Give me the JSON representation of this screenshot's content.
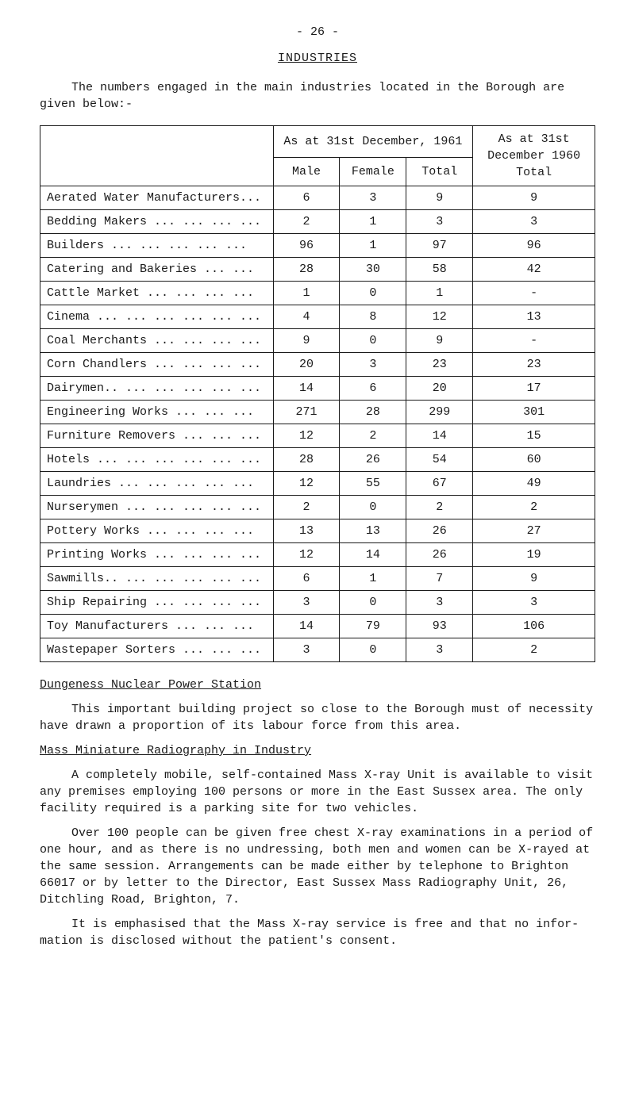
{
  "page_number": "- 26 -",
  "title": "INDUSTRIES",
  "intro": "The numbers engaged in the main industries located in the Borough are given below:-",
  "table": {
    "header": {
      "group1": "As at 31st December, 1961",
      "male": "Male",
      "female": "Female",
      "total": "Total",
      "prev": "As at 31st December 1960 Total"
    },
    "rows": [
      {
        "label": "Aerated Water Manufacturers...",
        "male": "6",
        "female": "3",
        "total": "9",
        "prev": "9"
      },
      {
        "label": "Bedding Makers ... ... ... ...",
        "male": "2",
        "female": "1",
        "total": "3",
        "prev": "3"
      },
      {
        "label": "Builders   ... ... ... ... ...",
        "male": "96",
        "female": "1",
        "total": "97",
        "prev": "96"
      },
      {
        "label": "Catering and Bakeries  ... ...",
        "male": "28",
        "female": "30",
        "total": "58",
        "prev": "42"
      },
      {
        "label": "Cattle Market  ... ... ... ...",
        "male": "1",
        "female": "0",
        "total": "1",
        "prev": "-"
      },
      {
        "label": "Cinema ... ... ... ... ... ...",
        "male": "4",
        "female": "8",
        "total": "12",
        "prev": "13"
      },
      {
        "label": "Coal Merchants ... ... ... ...",
        "male": "9",
        "female": "0",
        "total": "9",
        "prev": "-"
      },
      {
        "label": "Corn Chandlers ... ... ... ...",
        "male": "20",
        "female": "3",
        "total": "23",
        "prev": "23"
      },
      {
        "label": "Dairymen.. ... ... ... ... ...",
        "male": "14",
        "female": "6",
        "total": "20",
        "prev": "17"
      },
      {
        "label": "Engineering Works  ... ... ...",
        "male": "271",
        "female": "28",
        "total": "299",
        "prev": "301"
      },
      {
        "label": "Furniture Removers ... ... ...",
        "male": "12",
        "female": "2",
        "total": "14",
        "prev": "15"
      },
      {
        "label": "Hotels ... ... ... ... ... ...",
        "male": "28",
        "female": "26",
        "total": "54",
        "prev": "60"
      },
      {
        "label": "Laundries  ... ... ... ... ...",
        "male": "12",
        "female": "55",
        "total": "67",
        "prev": "49"
      },
      {
        "label": "Nurserymen ... ... ... ... ...",
        "male": "2",
        "female": "0",
        "total": "2",
        "prev": "2"
      },
      {
        "label": "Pottery Works  ... ... ... ...",
        "male": "13",
        "female": "13",
        "total": "26",
        "prev": "27"
      },
      {
        "label": "Printing Works ... ... ... ...",
        "male": "12",
        "female": "14",
        "total": "26",
        "prev": "19"
      },
      {
        "label": "Sawmills.. ... ... ... ... ...",
        "male": "6",
        "female": "1",
        "total": "7",
        "prev": "9"
      },
      {
        "label": "Ship Repairing ... ... ... ...",
        "male": "3",
        "female": "0",
        "total": "3",
        "prev": "3"
      },
      {
        "label": "Toy Manufacturers  ... ... ...",
        "male": "14",
        "female": "79",
        "total": "93",
        "prev": "106"
      },
      {
        "label": "Wastepaper Sorters ... ... ...",
        "male": "3",
        "female": "0",
        "total": "3",
        "prev": "2"
      }
    ]
  },
  "section1_heading": "Dungeness Nuclear Power Station",
  "section1_p1": "This important building project so close to the Borough must of necessity have drawn a proportion of its labour force from this area.",
  "section2_heading": "Mass Miniature Radiography in Industry",
  "section2_p1": "A completely mobile, self-contained Mass X-ray Unit is available to visit any premises employing 100 persons or more in the East Sussex area. The only facility required is a parking site for two vehicles.",
  "section2_p2": "Over 100 people can be given free chest X-ray examinations in a period of one hour, and as there is no undressing, both men and women can be X-rayed at the same session.  Arrangements can be made either by telephone to Brighton 66017 or by letter to the Director, East Sussex Mass Radiography Unit, 26, Ditchling Road, Brighton, 7.",
  "section2_p3": "It is emphasised that the Mass X-ray service is free and that no infor- mation is disclosed without the patient's consent."
}
